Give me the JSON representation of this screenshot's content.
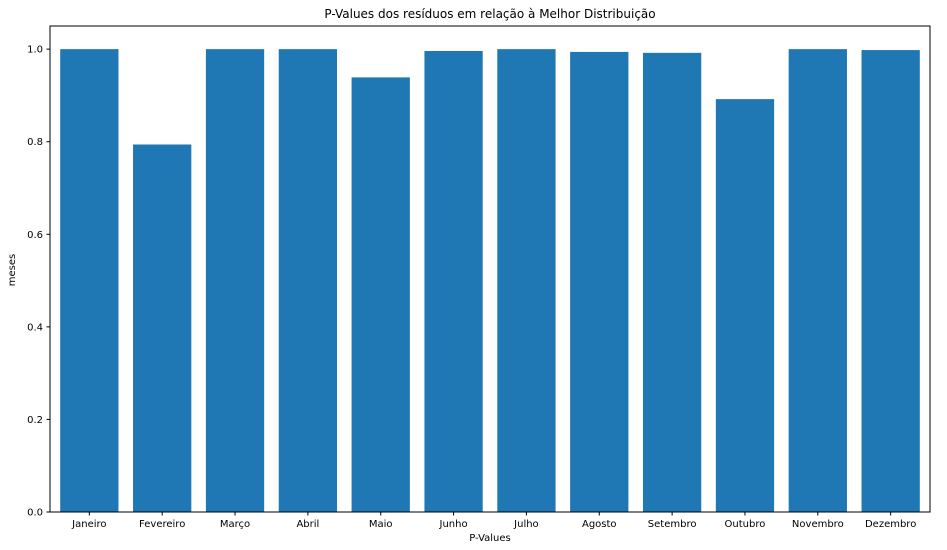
{
  "chart_data": {
    "type": "bar",
    "title": "P-Values dos resíduos em relação à Melhor Distribuição",
    "xlabel": "P-Values",
    "ylabel": "meses",
    "categories": [
      "Janeiro",
      "Fevereiro",
      "Março",
      "Abril",
      "Maio",
      "Junho",
      "Julho",
      "Agosto",
      "Setembro",
      "Outubro",
      "Novembro",
      "Dezembro"
    ],
    "values": [
      1.0,
      0.794,
      1.0,
      1.0,
      0.939,
      0.996,
      1.0,
      0.994,
      0.992,
      0.892,
      1.0,
      0.998
    ],
    "ylim": [
      0,
      1.05
    ],
    "yticks": [
      0.0,
      0.2,
      0.4,
      0.6,
      0.8,
      1.0
    ],
    "ytick_labels": [
      "0.0",
      "0.2",
      "0.4",
      "0.6",
      "0.8",
      "1.0"
    ],
    "bar_color": "#1f77b4",
    "grid": false,
    "legend": "none"
  }
}
